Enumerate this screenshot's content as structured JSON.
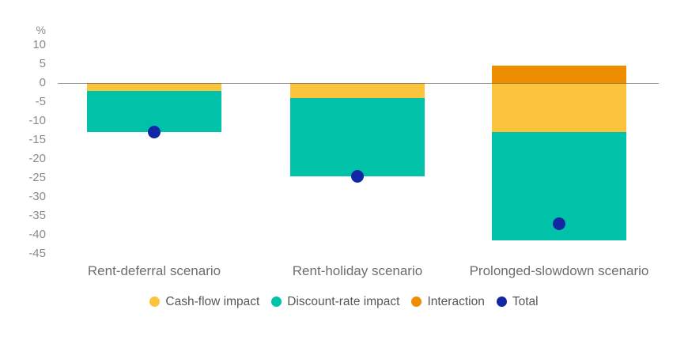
{
  "chart_data": {
    "type": "bar",
    "stacked": true,
    "title": "",
    "xlabel": "",
    "ylabel": "%",
    "grid": false,
    "legend_position": "bottom",
    "categories": [
      "Rent-deferral scenario",
      "Rent-holiday scenario",
      "Prolonged-slowdown scenario"
    ],
    "series": [
      {
        "name": "Cash-flow impact",
        "color": "#FCC43D",
        "values": [
          -2,
          -4,
          -13
        ]
      },
      {
        "name": "Discount-rate impact",
        "color": "#00C2A9",
        "values": [
          -11,
          -20.5,
          -28.5
        ]
      },
      {
        "name": "Interaction",
        "color": "#EF8D00",
        "values": [
          0,
          0,
          4.5
        ]
      }
    ],
    "total_series": {
      "name": "Total",
      "color": "#1127A3",
      "values": [
        -13,
        -24.5,
        -37
      ]
    },
    "y_axis": {
      "label": "%",
      "ticks": [
        10,
        5,
        0,
        -5,
        -10,
        -15,
        -20,
        -25,
        -30,
        -35,
        -40,
        -45
      ],
      "min": -45,
      "max": 10
    },
    "legend": [
      "Cash-flow impact",
      "Discount-rate impact",
      "Interaction",
      "Total"
    ]
  },
  "colors": {
    "background": "#FFFFFF",
    "axis_text": "#8A8A8A",
    "category_text": "#6E6E6E",
    "legend_text": "#575757",
    "zero_line": "#555555"
  }
}
